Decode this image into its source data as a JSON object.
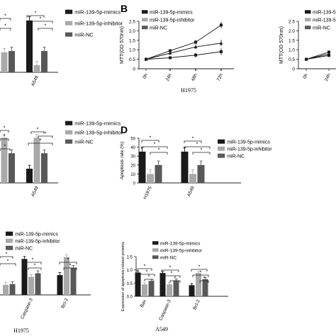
{
  "legend_labels": [
    "miR-139-5p-mimics",
    "miR-139-5p-inhibitor",
    "miR-NC"
  ],
  "colors": {
    "mimics": "#1a1a1a",
    "inhibitor": "#a9a9a9",
    "nc": "#585858",
    "axis": "#222222"
  },
  "panel_letters": {
    "b": "B",
    "d": "D"
  },
  "chart_data": [
    {
      "id": "A_cropped",
      "type": "bar",
      "categories": [
        "",
        "A549"
      ],
      "series": [
        {
          "name": "miR-139-5p-mimics",
          "values": [
            null,
            1.95
          ]
        },
        {
          "name": "miR-139-5p-inhibitor",
          "values": [
            0.75,
            0.27
          ]
        },
        {
          "name": "miR-NC",
          "values": [
            0.8,
            0.8
          ]
        }
      ],
      "ylim": [
        0,
        2.4
      ],
      "annotations": [
        "*",
        "*",
        "*",
        "*"
      ]
    },
    {
      "id": "B_H1975",
      "type": "line",
      "x": [
        "0h",
        "24h",
        "48h",
        "72h"
      ],
      "series": [
        {
          "name": "miR-139-5p-mimics",
          "values": [
            0.5,
            0.58,
            0.72,
            0.9
          ]
        },
        {
          "name": "miR-139-5p-inhibitor",
          "values": [
            0.5,
            0.95,
            1.4,
            2.3
          ]
        },
        {
          "name": "miR-NC",
          "values": [
            0.5,
            0.82,
            1.15,
            1.35
          ]
        }
      ],
      "ylabel": "MTT(OD 570nm)",
      "xlabel": "H1975",
      "ylim": [
        0,
        2.5
      ],
      "yticks": [
        "0",
        "0.5",
        "1.0",
        "1.5",
        "2.0",
        "2.5"
      ],
      "annotations": [
        "*",
        "*",
        "*"
      ]
    },
    {
      "id": "C_right_cropped",
      "type": "line",
      "x": [
        "0h",
        "24h"
      ],
      "series": [
        {
          "name": "miR-139-5p-mimics",
          "values": [
            0.5,
            0.7
          ]
        },
        {
          "name": "miR-139-5p-inhibitor",
          "values": [
            0.5,
            0.88
          ]
        },
        {
          "name": "miR-NC",
          "values": [
            0.5,
            0.78
          ]
        }
      ],
      "ylabel": "MTT(OD 570nm)",
      "ylim": [
        0,
        2.5
      ],
      "yticks": [
        "0",
        "0.5",
        "1.0",
        "1.5",
        "2.0",
        "2.5"
      ]
    },
    {
      "id": "C_left_cropped",
      "type": "bar",
      "categories": [
        "",
        "A549"
      ],
      "series": [
        {
          "name": "miR-139-5p-mimics",
          "values": [
            null,
            0.55
          ]
        },
        {
          "name": "miR-139-5p-inhibitor",
          "values": [
            1.75,
            1.75
          ]
        },
        {
          "name": "miR-NC",
          "values": [
            1.15,
            1.15
          ]
        }
      ],
      "ylim": [
        0,
        2.2
      ],
      "annotations": [
        "*",
        "*",
        "*",
        "*",
        "*",
        "*"
      ]
    },
    {
      "id": "D",
      "type": "bar",
      "categories": [
        "H1975",
        "A549"
      ],
      "series": [
        {
          "name": "miR-139-5p-mimics",
          "values": [
            35,
            35
          ]
        },
        {
          "name": "miR-139-5p-inhibitor",
          "values": [
            10,
            10
          ]
        },
        {
          "name": "miR-NC",
          "values": [
            20,
            20
          ]
        }
      ],
      "ylabel": "Apoptosis rate (%)",
      "ylim": [
        0,
        50
      ],
      "yticks": [
        "0",
        "10",
        "20",
        "30",
        "40",
        "50"
      ],
      "annotations": [
        "*",
        "*",
        "*",
        "*",
        "*",
        "*"
      ]
    },
    {
      "id": "E_left_cropped",
      "type": "bar",
      "categories": [
        "",
        "Caspase-3",
        "Bcl-2"
      ],
      "series": [
        {
          "name": "miR-139-5p-mimics",
          "values": [
            null,
            1.0,
            0.55
          ]
        },
        {
          "name": "miR-139-5p-inhibitor",
          "values": [
            0.28,
            0.5,
            1.05
          ]
        },
        {
          "name": "miR-NC",
          "values": [
            0.3,
            0.6,
            0.75
          ]
        }
      ],
      "xlabel": "H1975",
      "ylim": [
        0,
        1.4
      ],
      "annotations": [
        "*",
        "*",
        "*",
        "*",
        "*",
        "*"
      ]
    },
    {
      "id": "E_right",
      "type": "bar",
      "categories": [
        "Bax",
        "Caspase-3",
        "Bcl-2"
      ],
      "series": [
        {
          "name": "miR-139-5p-mimics",
          "values": [
            0.9,
            0.88,
            0.42
          ]
        },
        {
          "name": "miR-139-5p-inhibitor",
          "values": [
            0.45,
            0.45,
            0.88
          ]
        },
        {
          "name": "miR-NC",
          "values": [
            0.58,
            0.6,
            0.65
          ]
        }
      ],
      "ylabel": "Expression of apoptosis-related proteins",
      "xlabel": "A549",
      "ylim": [
        0,
        1.5
      ],
      "yticks": [
        "0.0",
        "0.5",
        "1.0",
        "1.5"
      ],
      "annotations": [
        "*",
        "*",
        "*",
        "*",
        "*",
        "*",
        "*",
        "*",
        "*"
      ]
    }
  ]
}
